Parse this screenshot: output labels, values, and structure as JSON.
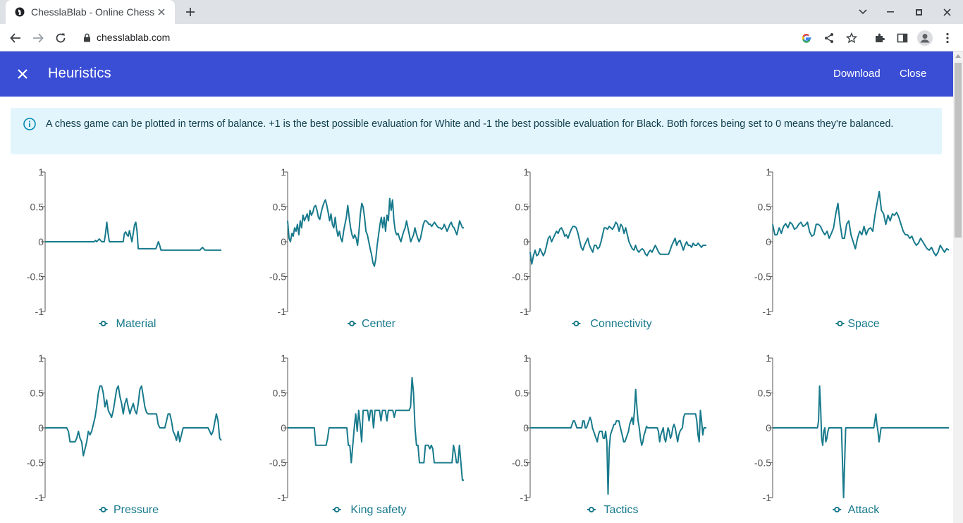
{
  "browser": {
    "tab_title": "ChesslaBlab - Online Chess",
    "url": "chesslablab.com"
  },
  "appbar": {
    "title": "Heuristics",
    "download_label": "Download",
    "close_label": "Close",
    "color": "#3a4ed5"
  },
  "info": {
    "text": "A chess game can be plotted in terms of balance. +1 is the best possible evaluation for White and -1 the best possible evaluation for Black. Both forces being set to 0 means they're balanced."
  },
  "icons": [
    "back-arrow-icon",
    "forward-arrow-icon",
    "reload-icon",
    "lock-icon",
    "google-icon",
    "share-icon",
    "star-icon",
    "extensions-icon",
    "sidepanel-icon",
    "profile-icon",
    "more-icon",
    "close-icon",
    "info-icon"
  ],
  "chart_data": [
    {
      "type": "line",
      "name": "Material",
      "ylim": [
        -1,
        1
      ],
      "yticks": [
        "1",
        "0.5",
        "0",
        "-0.5",
        "-1"
      ],
      "color": "#187a8c",
      "values": [
        0,
        0,
        0,
        0,
        0,
        0,
        0,
        0,
        0,
        0,
        0,
        0,
        0,
        0,
        0,
        0,
        0,
        0,
        0,
        0,
        0,
        0,
        0,
        0,
        0,
        0,
        0,
        0,
        0,
        0,
        0,
        0,
        0,
        0,
        0,
        0,
        0,
        0,
        0,
        0,
        0.02,
        0,
        0.02,
        0.04,
        0.02,
        0,
        0,
        0,
        0.12,
        0.28,
        0.12,
        0,
        0,
        0,
        0,
        0,
        0,
        0,
        0,
        0,
        0,
        0,
        0,
        0.12,
        0.14,
        0.1,
        0.08,
        0.16,
        0.08,
        0,
        0.12,
        0.24,
        0.28,
        0.15,
        -0.1,
        -0.1,
        -0.1,
        -0.1,
        -0.1,
        -0.1,
        -0.1,
        -0.1,
        -0.1,
        -0.1,
        -0.1,
        -0.1,
        -0.1,
        -0.1,
        -0.1,
        -0.05,
        0.0,
        -0.05,
        -0.12,
        -0.12,
        -0.12,
        -0.12,
        -0.12,
        -0.12,
        -0.12,
        -0.12,
        -0.12,
        -0.12,
        -0.12,
        -0.12,
        -0.12,
        -0.12,
        -0.12,
        -0.12,
        -0.12,
        -0.12,
        -0.12,
        -0.12,
        -0.12,
        -0.12,
        -0.12,
        -0.12,
        -0.12,
        -0.12,
        -0.12,
        -0.12,
        -0.12,
        -0.12,
        -0.12,
        -0.12,
        -0.1,
        -0.08,
        -0.1,
        -0.12,
        -0.12,
        -0.12,
        -0.12,
        -0.12,
        -0.12,
        -0.12,
        -0.12,
        -0.12,
        -0.12,
        -0.12,
        -0.12,
        -0.12,
        -0.12
      ]
    },
    {
      "type": "line",
      "name": "Center",
      "ylim": [
        -1,
        1
      ],
      "yticks": [
        "1",
        "0.5",
        "0",
        "-0.5",
        "-1"
      ],
      "color": "#187a8c",
      "values": [
        0.3,
        0.05,
        0.0,
        0.12,
        0.08,
        0.2,
        0.15,
        0.25,
        0.1,
        0.3,
        0.2,
        0.38,
        0.3,
        0.35,
        0.4,
        0.3,
        0.45,
        0.38,
        0.42,
        0.5,
        0.52,
        0.45,
        0.35,
        0.32,
        0.42,
        0.5,
        0.56,
        0.6,
        0.52,
        0.42,
        0.3,
        0.4,
        0.25,
        0.2,
        0.35,
        0.18,
        0.08,
        0.15,
        0.05,
        0.0,
        0.15,
        0.25,
        0.35,
        0.52,
        0.35,
        0.2,
        0.1,
        0.05,
        0.1,
        0.05,
        -0.05,
        0.15,
        0.4,
        0.55,
        0.5,
        0.35,
        0.15,
        0.1,
        0.0,
        -0.1,
        -0.18,
        -0.3,
        -0.35,
        -0.25,
        -0.05,
        0.1,
        0.25,
        0.35,
        0.2,
        0.35,
        0.15,
        0.38,
        0.3,
        0.62,
        0.45,
        0.6,
        0.3,
        0.15,
        0.1,
        0.12,
        0.05,
        0.0,
        0.08,
        0.15,
        0.2,
        0.3,
        0.2,
        0.1,
        0.0,
        0.05,
        0.1,
        0.2,
        0.12,
        0.05,
        0.0,
        0.05,
        0.15,
        0.25,
        0.3,
        0.3,
        0.28,
        0.25,
        0.25,
        0.22,
        0.25,
        0.28,
        0.25,
        0.22,
        0.2,
        0.2,
        0.18,
        0.2,
        0.25,
        0.2,
        0.15,
        0.2,
        0.25,
        0.28,
        0.22,
        0.2,
        0.15,
        0.1,
        0.2,
        0.3,
        0.25,
        0.2,
        0.2
      ]
    },
    {
      "type": "line",
      "name": "Connectivity",
      "ylim": [
        -1,
        1
      ],
      "yticks": [
        "1",
        "0.5",
        "0",
        "-0.5",
        "-1"
      ],
      "color": "#187a8c",
      "values": [
        -0.15,
        -0.32,
        -0.2,
        -0.12,
        -0.2,
        -0.18,
        -0.1,
        -0.15,
        -0.2,
        -0.15,
        -0.05,
        0.05,
        0.08,
        0.0,
        0.05,
        0.1,
        0.15,
        0.12,
        0.18,
        0.2,
        0.15,
        0.08,
        0.1,
        0.05,
        0.12,
        0.18,
        0.22,
        0.22,
        0.2,
        0.12,
        0.02,
        -0.08,
        -0.12,
        -0.05,
        0.0,
        0.05,
        -0.05,
        -0.1,
        -0.15,
        -0.05,
        -0.05,
        -0.1,
        -0.08,
        0.0,
        0.1,
        0.2,
        0.2,
        0.18,
        0.22,
        0.2,
        0.18,
        0.22,
        0.28,
        0.25,
        0.15,
        0.25,
        0.22,
        0.12,
        0.2,
        0.1,
        0.0,
        -0.05,
        -0.1,
        -0.12,
        -0.05,
        -0.12,
        -0.15,
        -0.12,
        -0.1,
        -0.12,
        -0.18,
        -0.2,
        -0.15,
        -0.12,
        -0.15,
        -0.1,
        -0.05,
        -0.1,
        -0.15,
        -0.18,
        -0.18,
        -0.18,
        -0.18,
        -0.18,
        -0.18,
        -0.12,
        -0.05,
        0.0,
        0.05,
        -0.05,
        0.0,
        0.02,
        -0.05,
        -0.12,
        -0.05,
        0.0,
        -0.05,
        -0.05,
        -0.08,
        -0.02,
        -0.05,
        -0.05,
        -0.02,
        -0.05,
        -0.08,
        -0.05,
        -0.05,
        -0.05
      ]
    },
    {
      "type": "line",
      "name": "Space",
      "ylim": [
        -1,
        1
      ],
      "yticks": [
        "1",
        "0.5",
        "0",
        "-0.5",
        "-1"
      ],
      "color": "#187a8c",
      "values": [
        0.25,
        0.1,
        0.1,
        0.2,
        0.12,
        0.22,
        0.26,
        0.2,
        0.28,
        0.25,
        0.18,
        0.2,
        0.25,
        0.28,
        0.22,
        0.24,
        0.28,
        0.14,
        0.08,
        0.1,
        0.25,
        0.25,
        0.22,
        0.15,
        0.1,
        0.15,
        0.05,
        0.12,
        0.2,
        0.4,
        0.55,
        0.25,
        0.05,
        0.05,
        0.25,
        0.3,
        0.1,
        0.0,
        -0.1,
        0.05,
        0.15,
        0.1,
        0.22,
        0.1,
        0.18,
        0.2,
        0.15,
        0.38,
        0.55,
        0.72,
        0.45,
        0.4,
        0.25,
        0.38,
        0.3,
        0.4,
        0.38,
        0.42,
        0.35,
        0.25,
        0.15,
        0.1,
        0.1,
        0.05,
        0.08,
        0.0,
        -0.05,
        -0.02,
        0.05,
        0.0,
        -0.05,
        -0.1,
        -0.12,
        -0.08,
        -0.15,
        -0.2,
        -0.15,
        -0.05,
        -0.1,
        -0.15,
        -0.1,
        -0.12
      ]
    },
    {
      "type": "line",
      "name": "Pressure",
      "ylim": [
        -1,
        1
      ],
      "yticks": [
        "1",
        "0.5",
        "0",
        "-0.5",
        "-1"
      ],
      "color": "#187a8c",
      "values": [
        0,
        0,
        0,
        0,
        0,
        0,
        0,
        0,
        0,
        0,
        0,
        0,
        0,
        0,
        -0.05,
        -0.2,
        -0.2,
        -0.2,
        -0.2,
        -0.15,
        -0.05,
        -0.15,
        -0.2,
        -0.4,
        -0.3,
        -0.2,
        -0.05,
        -0.1,
        -0.05,
        0.05,
        0.15,
        0.3,
        0.5,
        0.6,
        0.6,
        0.5,
        0.3,
        0.4,
        0.25,
        0.2,
        0.15,
        0.25,
        0.4,
        0.55,
        0.6,
        0.45,
        0.35,
        0.2,
        0.35,
        0.42,
        0.3,
        0.2,
        0.28,
        0.35,
        0.25,
        0.2,
        0.35,
        0.55,
        0.6,
        0.45,
        0.3,
        0.22,
        0.2,
        0.2,
        0.2,
        0.2,
        0.2,
        0.2,
        0.05,
        0,
        0,
        0,
        0,
        0.1,
        0.2,
        0.2,
        0.1,
        -0.05,
        -0.1,
        -0.18,
        -0.05,
        -0.2,
        -0.1,
        0,
        0,
        0,
        0,
        0,
        0,
        0,
        0,
        0,
        0,
        0,
        0,
        0,
        0,
        0,
        0,
        -0.05,
        -0.1,
        -0.05,
        0.08,
        0.2,
        0.1,
        -0.15,
        -0.18
      ]
    },
    {
      "type": "line",
      "name": "King safety",
      "ylim": [
        -1,
        1
      ],
      "yticks": [
        "1",
        "0.5",
        "0",
        "-0.5",
        "-1"
      ],
      "color": "#187a8c",
      "values": [
        0,
        0,
        0,
        0,
        0,
        0,
        0,
        0,
        0,
        0,
        0,
        0,
        0,
        0,
        0,
        0,
        0,
        0,
        0,
        -0.25,
        -0.25,
        -0.25,
        -0.25,
        -0.25,
        -0.25,
        -0.25,
        -0.25,
        -0.15,
        0,
        0,
        0,
        0,
        0,
        0,
        0,
        0,
        0,
        0,
        0,
        0,
        0,
        -0.25,
        -0.25,
        -0.5,
        -0.25,
        0.0,
        0.2,
        -0.05,
        0.25,
        0.05,
        -0.2,
        0.25,
        0.25,
        0.25,
        0.25,
        0.1,
        0.25,
        0.25,
        0.0,
        0.25,
        0.25,
        0.25,
        0.25,
        0.1,
        0.25,
        0.25,
        0.25,
        0.1,
        0.25,
        0.25,
        0.25,
        0.25,
        0.15,
        0.25,
        0.25,
        0.25,
        0.25,
        0.25,
        0.25,
        0.25,
        0.25,
        0.25,
        0.25,
        0.3,
        0.72,
        0.5,
        0.0,
        -0.25,
        -0.25,
        -0.5,
        -0.5,
        -0.5,
        -0.5,
        -0.25,
        -0.25,
        -0.25,
        -0.3,
        -0.25,
        -0.3,
        -0.5,
        -0.5,
        -0.5,
        -0.5,
        -0.5,
        -0.5,
        -0.5,
        -0.5,
        -0.5,
        -0.5,
        -0.5,
        -0.5,
        -0.5,
        -0.25,
        -0.35,
        -0.5,
        -0.5,
        -0.25,
        -0.5,
        -0.75,
        -0.75
      ]
    },
    {
      "type": "line",
      "name": "Tactics",
      "ylim": [
        -1,
        1
      ],
      "yticks": [
        "1",
        "0.5",
        "0",
        "-0.5",
        "-1"
      ],
      "color": "#187a8c",
      "values": [
        0,
        0,
        0,
        0,
        0,
        0,
        0,
        0,
        0,
        0,
        0,
        0,
        0,
        0,
        0,
        0,
        0,
        0,
        0,
        0,
        0,
        0,
        0,
        0,
        0,
        0,
        0,
        0,
        0,
        0,
        0,
        0,
        0,
        0,
        0,
        0.05,
        0.1,
        0.1,
        0.05,
        0,
        0,
        0,
        0,
        0,
        0.1,
        0.1,
        0,
        0,
        0.05,
        0.1,
        0.15,
        0.1,
        0,
        -0.05,
        -0.1,
        -0.15,
        -0.2,
        -0.1,
        -0.05,
        -0.05,
        -0.05,
        -0.15,
        -0.15,
        -0.05,
        -0.2,
        -0.95,
        -0.3,
        -0.1,
        -0.05,
        0,
        0.05,
        0.05,
        0.1,
        0.1,
        0.1,
        0.02,
        -0.05,
        -0.12,
        -0.2,
        -0.2,
        -0.15,
        -0.1,
        -0.05,
        0.05,
        0.1,
        0.15,
        0.05,
        0.25,
        0.55,
        0.3,
        0.1,
        0,
        -0.15,
        -0.25,
        -0.2,
        -0.1,
        -0.05,
        0.02,
        0,
        0,
        0,
        0,
        0,
        0,
        0,
        0,
        0,
        -0.05,
        -0.2,
        -0.1,
        -0.05,
        0,
        -0.15,
        -0.2,
        -0.1,
        0,
        -0.05,
        -0.15,
        -0.1,
        0,
        0.05,
        0,
        -0.1,
        -0.2,
        -0.1,
        -0.05,
        -0.02,
        0,
        0.15,
        0.2,
        0.2,
        0.2,
        0.2,
        0.2,
        0.2,
        0.2,
        0.2,
        0.2,
        0.2,
        0.1,
        -0.1,
        -0.2,
        0.25,
        0.1,
        -0.1,
        0,
        0,
        0
      ]
    },
    {
      "type": "line",
      "name": "Attack",
      "ylim": [
        -1,
        1
      ],
      "yticks": [
        "1",
        "0.5",
        "0",
        "-0.5",
        "-1"
      ],
      "color": "#187a8c",
      "values": [
        0,
        0,
        0,
        0,
        0,
        0,
        0,
        0,
        0,
        0,
        0,
        0,
        0,
        0,
        0,
        0,
        0,
        0,
        0,
        0,
        0,
        0,
        0,
        0,
        0,
        0,
        0,
        0,
        0,
        0,
        0,
        0,
        0,
        0,
        0,
        0,
        0,
        0,
        0,
        0,
        0,
        0,
        0,
        0,
        0.1,
        0.6,
        0.3,
        -0.15,
        -0.25,
        -0.05,
        0,
        -0.2,
        -0.15,
        -0.05,
        0,
        0,
        0,
        0,
        0,
        0,
        0,
        0,
        0,
        0,
        0,
        0,
        0,
        -0.5,
        -1.0,
        -0.5,
        0,
        0,
        0,
        0,
        0,
        0,
        0,
        0,
        0,
        0,
        0,
        0,
        0,
        0,
        0,
        0,
        0,
        0,
        0,
        0,
        0,
        0,
        0,
        0,
        0,
        0,
        0,
        0,
        0.1,
        0.2,
        0.05,
        -0.05,
        -0.2,
        -0.1,
        0,
        0,
        0,
        0,
        0,
        0,
        0,
        0,
        0,
        0,
        0,
        0,
        0,
        0,
        0,
        0,
        0,
        0,
        0,
        0,
        0,
        0,
        0,
        0,
        0,
        0,
        0,
        0,
        0,
        0,
        0,
        0,
        0,
        0,
        0,
        0,
        0,
        0,
        0,
        0,
        0,
        0,
        0,
        0,
        0,
        0,
        0,
        0,
        0,
        0,
        0,
        0,
        0,
        0,
        0,
        0,
        0,
        0,
        0,
        0,
        0,
        0,
        0,
        0,
        0,
        0
      ]
    }
  ]
}
